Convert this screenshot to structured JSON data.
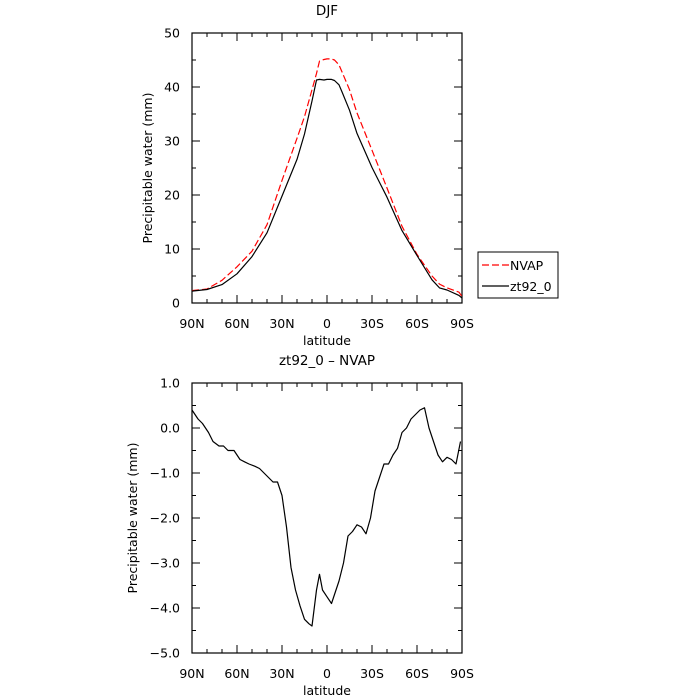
{
  "chart_data": [
    {
      "type": "line",
      "title": "DJF",
      "xlabel": "latitude",
      "ylabel": "Precipitable water (mm)",
      "ylim": [
        0,
        50
      ],
      "yticks": [
        "0",
        "10",
        "20",
        "30",
        "40",
        "50"
      ],
      "xlim": [
        90,
        -90
      ],
      "xticks": [
        "90N",
        "60N",
        "30N",
        "0",
        "30S",
        "60S",
        "90S"
      ],
      "legend_position": "right",
      "series": [
        {
          "name": "NVAP",
          "color": "#ff0000",
          "dash": "dashed",
          "x": [
            90,
            80,
            70,
            60,
            50,
            40,
            30,
            20,
            15,
            10,
            7,
            5,
            2,
            0,
            -3,
            -5,
            -8,
            -10,
            -15,
            -20,
            -30,
            -40,
            -50,
            -60,
            -70,
            -75,
            -80,
            -88,
            -90
          ],
          "y": [
            2.3,
            2.6,
            4.2,
            6.7,
            9.6,
            14.5,
            22.7,
            30.5,
            34.5,
            39.5,
            42.5,
            44.8,
            45.1,
            45.2,
            45.2,
            45.0,
            44.1,
            42.8,
            39.5,
            35.2,
            28.3,
            21.3,
            14.2,
            9.0,
            5.0,
            3.5,
            2.8,
            2.0,
            1.2
          ]
        },
        {
          "name": "zt92_0",
          "color": "#000000",
          "dash": "solid",
          "x": [
            90,
            80,
            70,
            60,
            50,
            40,
            30,
            20,
            15,
            10,
            7,
            5,
            2,
            0,
            -3,
            -5,
            -8,
            -10,
            -15,
            -20,
            -30,
            -40,
            -50,
            -60,
            -70,
            -75,
            -80,
            -88,
            -90
          ],
          "y": [
            2.2,
            2.5,
            3.4,
            5.4,
            8.6,
            13.0,
            19.8,
            26.6,
            31.3,
            37.4,
            41.3,
            41.4,
            41.3,
            41.4,
            41.4,
            41.2,
            40.4,
            39.1,
            35.7,
            31.4,
            25.1,
            19.6,
            13.4,
            8.8,
            4.3,
            2.8,
            2.4,
            1.4,
            0.9
          ]
        }
      ]
    },
    {
      "type": "line",
      "title": "zt92_0 – NVAP",
      "xlabel": "latitude",
      "ylabel": "Precipitable water (mm)",
      "ylim": [
        -5,
        1
      ],
      "yticks": [
        "−5.0",
        "−4.0",
        "−3.0",
        "−2.0",
        "−1.0",
        "0.0",
        "1.0"
      ],
      "xlim": [
        90,
        -90
      ],
      "xticks": [
        "90N",
        "60N",
        "30N",
        "0",
        "30S",
        "60S",
        "90S"
      ],
      "series": [
        {
          "color": "#000000",
          "dash": "solid",
          "x": [
            90,
            86,
            83,
            79,
            76,
            72,
            69,
            66,
            62,
            58,
            55,
            52,
            48,
            45,
            42,
            39,
            36,
            33,
            30,
            27,
            24,
            21,
            18,
            15,
            12,
            10,
            7,
            5,
            3,
            0,
            -3,
            -5,
            -8,
            -11,
            -14,
            -17,
            -20,
            -23,
            -26,
            -29,
            -32,
            -35,
            -38,
            -41,
            -44,
            -47,
            -50,
            -53,
            -56,
            -59,
            -62,
            -65,
            -68,
            -71,
            -74,
            -77,
            -80,
            -83,
            -86,
            -89
          ],
          "y": [
            0.4,
            0.2,
            0.1,
            -0.1,
            -0.3,
            -0.4,
            -0.4,
            -0.5,
            -0.5,
            -0.7,
            -0.75,
            -0.8,
            -0.85,
            -0.9,
            -1.0,
            -1.1,
            -1.2,
            -1.2,
            -1.5,
            -2.2,
            -3.1,
            -3.6,
            -3.95,
            -4.25,
            -4.35,
            -4.4,
            -3.6,
            -3.25,
            -3.6,
            -3.75,
            -3.9,
            -3.7,
            -3.4,
            -3.0,
            -2.4,
            -2.3,
            -2.15,
            -2.2,
            -2.35,
            -2.0,
            -1.4,
            -1.1,
            -0.8,
            -0.8,
            -0.6,
            -0.45,
            -0.1,
            0.0,
            0.2,
            0.3,
            0.4,
            0.45,
            0.0,
            -0.3,
            -0.6,
            -0.75,
            -0.65,
            -0.7,
            -0.8,
            -0.3
          ]
        }
      ]
    }
  ]
}
